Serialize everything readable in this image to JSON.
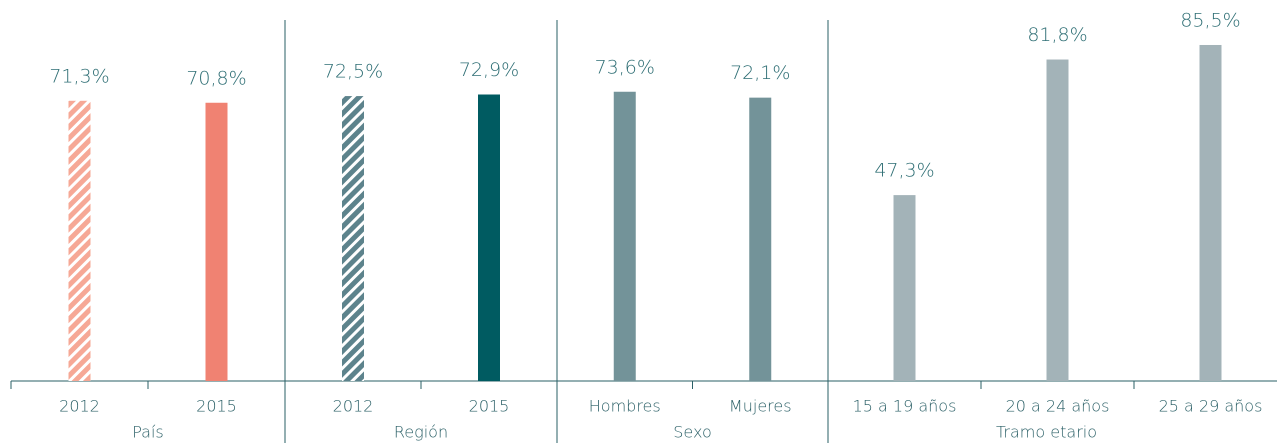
{
  "chart_data": {
    "type": "bar",
    "groups": [
      {
        "name": "País",
        "categories": [
          "2012",
          "2015"
        ],
        "values": [
          71.3,
          70.8
        ],
        "value_labels": [
          "71,3%",
          "70,8%"
        ],
        "colors": [
          "#f6a896",
          "#f08272"
        ],
        "hatch": [
          true,
          false
        ]
      },
      {
        "name": "Región",
        "categories": [
          "2012",
          "2015"
        ],
        "values": [
          72.5,
          72.9
        ],
        "value_labels": [
          "72,5%",
          "72,9%"
        ],
        "colors": [
          "#5d838c",
          "#005b61"
        ],
        "hatch": [
          true,
          false
        ]
      },
      {
        "name": "Sexo",
        "categories": [
          "Hombres",
          "Mujeres"
        ],
        "values": [
          73.6,
          72.1
        ],
        "value_labels": [
          "73,6%",
          "72,1%"
        ],
        "colors": [
          "#739399",
          "#739399"
        ],
        "hatch": [
          false,
          false
        ]
      },
      {
        "name": "Tramo etario",
        "categories": [
          "15 a 19 años",
          "20 a 24 años",
          "25 a 29 años"
        ],
        "values": [
          47.3,
          81.8,
          85.5
        ],
        "value_labels": [
          "47,3%",
          "81,8%",
          "85,5%"
        ],
        "colors": [
          "#a3b3b8",
          "#a3b3b8",
          "#a3b3b8"
        ],
        "hatch": [
          false,
          false,
          false
        ]
      }
    ],
    "ylim": [
      0,
      100
    ]
  }
}
